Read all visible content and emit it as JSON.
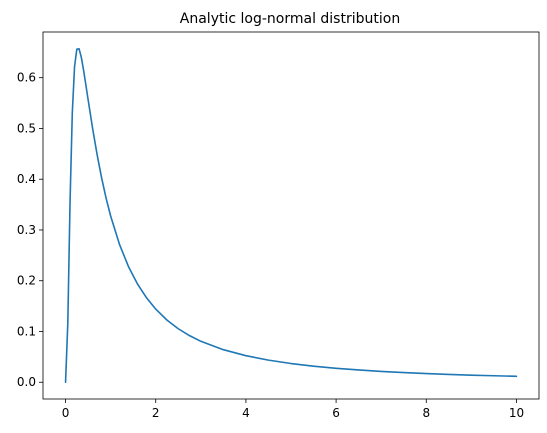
{
  "chart_data": {
    "type": "line",
    "title": "Analytic log-normal distribution",
    "xlabel": "",
    "ylabel": "",
    "xlim": [
      -0.5,
      10.5
    ],
    "ylim": [
      -0.033,
      0.69
    ],
    "xticks": [
      0,
      2,
      4,
      6,
      8,
      10
    ],
    "yticks": [
      0.0,
      0.1,
      0.2,
      0.3,
      0.4,
      0.5,
      0.6
    ],
    "xtick_labels": [
      "0",
      "2",
      "4",
      "6",
      "8",
      "10"
    ],
    "ytick_labels": [
      "0.0",
      "0.1",
      "0.2",
      "0.3",
      "0.4",
      "0.5",
      "0.6"
    ],
    "grid": false,
    "legend": "none",
    "series": [
      {
        "color": "#1f77b4",
        "x": [
          0.0,
          0.05,
          0.1,
          0.15,
          0.2,
          0.25,
          0.3,
          0.35,
          0.4,
          0.45,
          0.5,
          0.6,
          0.7,
          0.8,
          0.9,
          1.0,
          1.2,
          1.4,
          1.6,
          1.8,
          2.0,
          2.25,
          2.5,
          2.75,
          3.0,
          3.5,
          4.0,
          4.5,
          5.0,
          5.5,
          6.0,
          6.5,
          7.0,
          7.5,
          8.0,
          8.5,
          9.0,
          9.5,
          10.0
        ],
        "y": [
          0.0,
          0.1159,
          0.3554,
          0.5314,
          0.6221,
          0.6561,
          0.6568,
          0.6399,
          0.6147,
          0.5862,
          0.5569,
          0.5002,
          0.4484,
          0.4025,
          0.3623,
          0.3275,
          0.2707,
          0.227,
          0.1929,
          0.1659,
          0.1441,
          0.1224,
          0.1054,
          0.0918,
          0.0807,
          0.0641,
          0.0523,
          0.0436,
          0.0369,
          0.0317,
          0.0275,
          0.0242,
          0.0214,
          0.0191,
          0.0171,
          0.0154,
          0.014,
          0.0128,
          0.0117
        ]
      }
    ]
  }
}
